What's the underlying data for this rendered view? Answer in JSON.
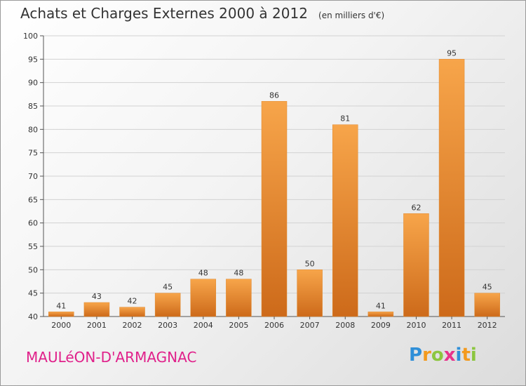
{
  "title": {
    "main": "Achats et Charges Externes 2000 à 2012",
    "unit": "(en milliers d'€)"
  },
  "commune": "MAULéON-D'ARMAGNAC",
  "logo": {
    "text": "Proxiti",
    "letters": [
      {
        "ch": "P",
        "color": "#2f8fd8"
      },
      {
        "ch": "r",
        "color": "#f39a1e"
      },
      {
        "ch": "o",
        "color": "#8cc63f"
      },
      {
        "ch": "x",
        "color": "#e8338b"
      },
      {
        "ch": "i",
        "color": "#2f8fd8"
      },
      {
        "ch": "t",
        "color": "#f39a1e"
      },
      {
        "ch": "i",
        "color": "#8cc63f"
      }
    ]
  },
  "colors": {
    "bar_light": "#f7a54a",
    "bar_dark": "#cd6a1a",
    "commune": "#e0208a"
  },
  "chart_data": {
    "type": "bar",
    "title": "Achats et Charges Externes 2000 à 2012",
    "subtitle": "(en milliers d'€)",
    "categories": [
      "2000",
      "2001",
      "2002",
      "2003",
      "2004",
      "2005",
      "2006",
      "2007",
      "2008",
      "2009",
      "2010",
      "2011",
      "2012"
    ],
    "values": [
      41,
      43,
      42,
      45,
      48,
      48,
      86,
      50,
      81,
      41,
      62,
      95,
      45
    ],
    "ylim": [
      40,
      100
    ],
    "yticks": [
      40,
      45,
      50,
      55,
      60,
      65,
      70,
      75,
      80,
      85,
      90,
      95,
      100
    ],
    "grid": true,
    "xlabel": "",
    "ylabel": ""
  }
}
